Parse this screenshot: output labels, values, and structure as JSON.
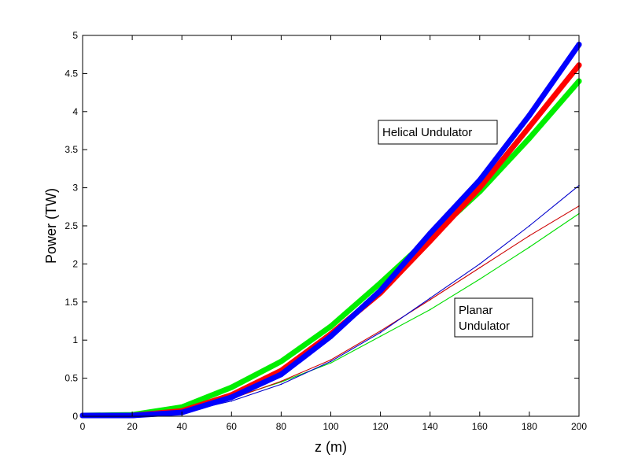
{
  "chart_data": {
    "type": "line",
    "xlabel": "z (m)",
    "ylabel": "Power (TW)",
    "xlim": [
      0,
      200
    ],
    "ylim": [
      0,
      5
    ],
    "xticks": [
      0,
      20,
      40,
      60,
      80,
      100,
      120,
      140,
      160,
      180,
      200
    ],
    "yticks": [
      0,
      0.5,
      1,
      1.5,
      2,
      2.5,
      3,
      3.5,
      4,
      4.5,
      5
    ],
    "xtick_labels": [
      "0",
      "20",
      "40",
      "60",
      "80",
      "100",
      "120",
      "140",
      "160",
      "180",
      "200"
    ],
    "ytick_labels": [
      "0",
      "0.5",
      "1",
      "1.5",
      "2",
      "2.5",
      "3",
      "3.5",
      "4",
      "4.5",
      "5"
    ],
    "grid": false,
    "annotations": [
      {
        "lines": [
          "Helical Undulator"
        ]
      },
      {
        "lines": [
          "Planar",
          "Undulator"
        ]
      }
    ],
    "series": [
      {
        "color": "#0000ff",
        "weight": "thick",
        "x": [
          0,
          20,
          40,
          60,
          80,
          100,
          120,
          140,
          160,
          180,
          200
        ],
        "y": [
          0.01,
          0.01,
          0.05,
          0.25,
          0.55,
          1.05,
          1.65,
          2.4,
          3.1,
          3.95,
          4.88
        ]
      },
      {
        "color": "#ff0000",
        "weight": "thick",
        "x": [
          0,
          20,
          40,
          60,
          80,
          100,
          120,
          140,
          160,
          180,
          200
        ],
        "y": [
          0.01,
          0.01,
          0.07,
          0.28,
          0.6,
          1.08,
          1.62,
          2.3,
          3.0,
          3.8,
          4.61
        ]
      },
      {
        "color": "#00ee00",
        "weight": "thick",
        "x": [
          0,
          20,
          40,
          60,
          80,
          100,
          120,
          140,
          160,
          180,
          200
        ],
        "y": [
          0.01,
          0.02,
          0.12,
          0.38,
          0.72,
          1.18,
          1.75,
          2.35,
          2.95,
          3.65,
          4.4
        ]
      },
      {
        "color": "#0000cc",
        "weight": "thin",
        "x": [
          0,
          20,
          40,
          60,
          80,
          100,
          120,
          140,
          160,
          180,
          200
        ],
        "y": [
          0.0,
          0.0,
          0.05,
          0.2,
          0.42,
          0.72,
          1.1,
          1.55,
          2.0,
          2.5,
          3.03
        ]
      },
      {
        "color": "#cc0000",
        "weight": "thin",
        "x": [
          0,
          20,
          40,
          60,
          80,
          100,
          120,
          140,
          160,
          180,
          200
        ],
        "y": [
          0.0,
          0.0,
          0.06,
          0.23,
          0.46,
          0.74,
          1.12,
          1.53,
          1.95,
          2.37,
          2.76
        ]
      },
      {
        "color": "#00dd00",
        "weight": "thin",
        "x": [
          0,
          20,
          40,
          60,
          80,
          100,
          120,
          140,
          160,
          180,
          200
        ],
        "y": [
          0.0,
          0.0,
          0.07,
          0.24,
          0.45,
          0.7,
          1.05,
          1.4,
          1.8,
          2.22,
          2.66
        ]
      }
    ]
  }
}
